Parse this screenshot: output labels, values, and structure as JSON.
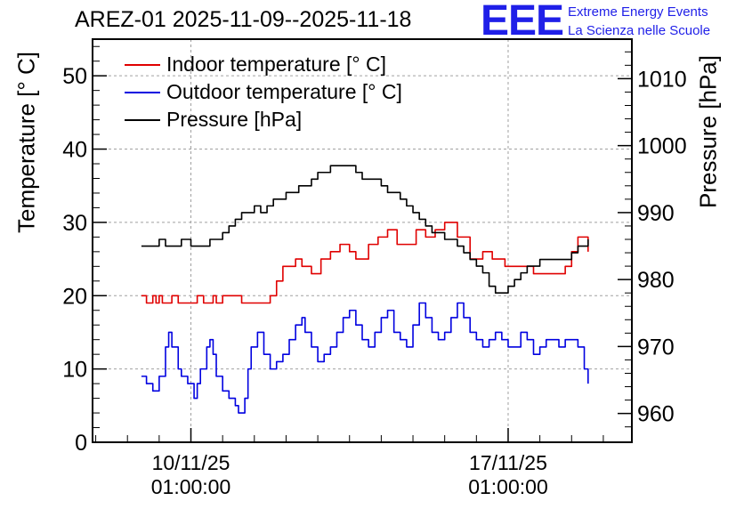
{
  "chart_data": {
    "type": "line",
    "title": "AREZ-01 2025-11-09--2025-11-18",
    "logo": {
      "mark": "EEE",
      "line1": "Extreme Energy Events",
      "line2": "La Scienza nelle Scuole"
    },
    "ylabel_left": "Temperature [° C]",
    "ylabel_right": "Pressure [hPa]",
    "ylim_left": [
      0,
      55
    ],
    "ylim_right": [
      955.7,
      1015.9
    ],
    "yticks_left": [
      "0",
      "10",
      "20",
      "30",
      "40",
      "50"
    ],
    "yticks_right": [
      "960",
      "970",
      "980",
      "990",
      "1000",
      "1010"
    ],
    "xlim_days": [
      9.55,
      11.25
    ],
    "x_ticks": [
      {
        "day": 9.86,
        "line1": "10/11/25",
        "line2": "01:00:00"
      },
      {
        "day": 10.86,
        "line1": "17/11/25",
        "line2": "01:00:00"
      }
    ],
    "grid": true,
    "legend_position": "top-left",
    "series": [
      {
        "name": "Indoor temperature [° C]",
        "axis": "left",
        "color": "#e00000",
        "x": [
          9.704,
          9.72,
          9.74,
          9.75,
          9.76,
          9.77,
          9.8,
          9.82,
          9.86,
          9.88,
          9.9,
          9.92,
          9.93,
          9.94,
          9.96,
          9.98,
          10.0,
          10.02,
          10.03,
          10.04,
          10.06,
          10.07,
          10.09,
          10.11,
          10.13,
          10.15,
          10.17,
          10.19,
          10.21,
          10.24,
          10.27,
          10.3,
          10.33,
          10.36,
          10.38,
          10.4,
          10.42,
          10.45,
          10.48,
          10.51,
          10.54,
          10.57,
          10.6,
          10.63,
          10.66,
          10.7,
          10.74,
          10.78,
          10.81,
          10.85,
          10.88,
          10.9,
          10.92,
          10.94,
          10.96,
          10.98,
          11.0,
          11.02,
          11.04,
          11.06,
          11.08,
          11.1,
          11.112
        ],
        "y": [
          20,
          19,
          20,
          19,
          20,
          19,
          20,
          19,
          19,
          20,
          19,
          19,
          20,
          19,
          20,
          20,
          20,
          19,
          19,
          19,
          19,
          19,
          19,
          20,
          22,
          24,
          24,
          25,
          24,
          23,
          25,
          26,
          27,
          26,
          25,
          25,
          27,
          28,
          29,
          27,
          27,
          29,
          28,
          29,
          30,
          28,
          25,
          26,
          25,
          24,
          24,
          24,
          24,
          23,
          23,
          23,
          23,
          23,
          24,
          26,
          28,
          28,
          26
        ]
      },
      {
        "name": "Outdoor temperature [° C]",
        "axis": "left",
        "color": "#0000e0",
        "x": [
          9.704,
          9.72,
          9.74,
          9.75,
          9.76,
          9.78,
          9.79,
          9.8,
          9.82,
          9.83,
          9.85,
          9.86,
          9.87,
          9.88,
          9.89,
          9.91,
          9.92,
          9.93,
          9.94,
          9.96,
          9.98,
          10.0,
          10.01,
          10.03,
          10.04,
          10.05,
          10.07,
          10.09,
          10.11,
          10.13,
          10.15,
          10.17,
          10.19,
          10.21,
          10.22,
          10.24,
          10.26,
          10.28,
          10.3,
          10.32,
          10.34,
          10.36,
          10.38,
          10.4,
          10.42,
          10.44,
          10.46,
          10.48,
          10.5,
          10.52,
          10.54,
          10.56,
          10.58,
          10.6,
          10.62,
          10.64,
          10.66,
          10.68,
          10.7,
          10.72,
          10.74,
          10.76,
          10.78,
          10.8,
          10.82,
          10.84,
          10.86,
          10.88,
          10.9,
          10.92,
          10.94,
          10.96,
          10.98,
          11.0,
          11.02,
          11.04,
          11.06,
          11.08,
          11.1,
          11.112
        ],
        "y": [
          9,
          8,
          7,
          7,
          9,
          13,
          15,
          13,
          10,
          9,
          8,
          8,
          6,
          8,
          10,
          13,
          14,
          12,
          9,
          7,
          6,
          5,
          4,
          6,
          10,
          13,
          15,
          12,
          10,
          11,
          12,
          14,
          16,
          17,
          15,
          13,
          11,
          12,
          13,
          15,
          17,
          18,
          16,
          14,
          13,
          15,
          17,
          18,
          15,
          14,
          13,
          16,
          19,
          17,
          15,
          14,
          15,
          17,
          19,
          17,
          15,
          14,
          13,
          14,
          15,
          14,
          13,
          13,
          15,
          14,
          12,
          13,
          14,
          14,
          13,
          14,
          14,
          13,
          10,
          8
        ]
      },
      {
        "name": "Pressure [hPa]",
        "axis": "right",
        "color": "#000000",
        "x": [
          9.704,
          9.74,
          9.76,
          9.78,
          9.8,
          9.83,
          9.86,
          9.88,
          9.9,
          9.92,
          9.94,
          9.96,
          9.98,
          10.0,
          10.02,
          10.04,
          10.06,
          10.08,
          10.1,
          10.12,
          10.14,
          10.16,
          10.18,
          10.2,
          10.22,
          10.24,
          10.26,
          10.28,
          10.3,
          10.32,
          10.34,
          10.36,
          10.38,
          10.4,
          10.42,
          10.44,
          10.46,
          10.48,
          10.5,
          10.52,
          10.54,
          10.56,
          10.58,
          10.6,
          10.62,
          10.64,
          10.66,
          10.68,
          10.7,
          10.72,
          10.74,
          10.76,
          10.78,
          10.8,
          10.82,
          10.84,
          10.86,
          10.88,
          10.9,
          10.92,
          10.94,
          10.96,
          10.98,
          11.0,
          11.02,
          11.04,
          11.06,
          11.08,
          11.1,
          11.112
        ],
        "y": [
          985,
          985,
          986,
          985,
          985,
          986,
          985,
          985,
          985,
          986,
          986,
          987,
          988,
          989,
          990,
          990,
          991,
          990,
          991,
          992,
          992,
          993,
          993,
          994,
          994,
          995,
          996,
          996,
          997,
          997,
          997,
          997,
          996,
          995,
          995,
          995,
          994,
          993,
          993,
          992,
          991,
          990,
          989,
          988,
          987,
          987,
          986,
          986,
          985,
          984,
          983,
          982,
          981,
          979,
          978,
          978,
          979,
          980,
          981,
          982,
          982,
          983,
          983,
          983,
          983,
          983,
          984,
          985,
          985,
          986
        ]
      }
    ]
  }
}
